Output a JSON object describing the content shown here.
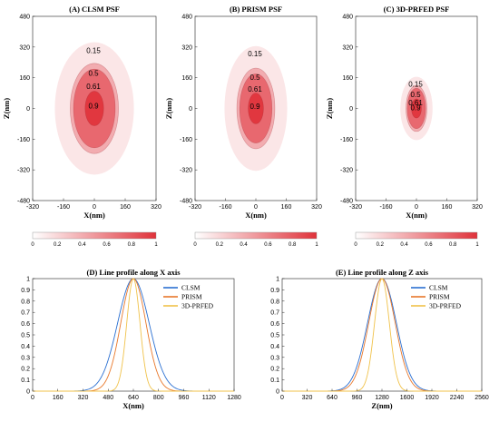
{
  "colors": {
    "psf_base": "#e0323a",
    "psf_light": "#f6d0d2",
    "clsm": "#2a6fd1",
    "prism": "#e8772a",
    "prfed": "#f0c24a"
  },
  "chart_data": [
    {
      "type": "heatmap",
      "title": "(A) CLSM PSF",
      "xlabel": "X(nm)",
      "ylabel": "Z(nm)",
      "xlim": [
        -320,
        320
      ],
      "ylim": [
        -480,
        480
      ],
      "xticks": [
        "-320",
        "-160",
        "0",
        "160",
        "320"
      ],
      "yticks": [
        "480",
        "320",
        "160",
        "0",
        "-160",
        "-320",
        "-480"
      ],
      "contour_levels": [
        "0.15",
        "0.5",
        "0.61",
        "0.9"
      ],
      "colorbar_ticks": [
        "0",
        "0.2",
        "0.4",
        "0.6",
        "0.8",
        "1"
      ],
      "psf_semi_axes_x": [
        205,
        125,
        108,
        48
      ],
      "psf_semi_axes_z": [
        345,
        235,
        205,
        90
      ]
    },
    {
      "type": "heatmap",
      "title": "(B) PRISM PSF",
      "xlabel": "X(nm)",
      "ylabel": "Z(nm)",
      "xlim": [
        -320,
        320
      ],
      "ylim": [
        -480,
        480
      ],
      "xticks": [
        "-320",
        "-160",
        "0",
        "160",
        "320"
      ],
      "yticks": [
        "480",
        "320",
        "160",
        "0",
        "-160",
        "-320",
        "-480"
      ],
      "contour_levels": [
        "0.15",
        "0.5",
        "0.61",
        "0.9"
      ],
      "colorbar_ticks": [
        "0",
        "0.2",
        "0.4",
        "0.6",
        "0.8",
        "1"
      ],
      "psf_semi_axes_x": [
        165,
        100,
        85,
        40
      ],
      "psf_semi_axes_z": [
        325,
        210,
        180,
        80
      ]
    },
    {
      "type": "heatmap",
      "title": "(C) 3D-PRFED PSF",
      "xlabel": "X(nm)",
      "ylabel": "Z(nm)",
      "xlim": [
        -320,
        320
      ],
      "ylim": [
        -480,
        480
      ],
      "xticks": [
        "-320",
        "-160",
        "0",
        "160",
        "320"
      ],
      "yticks": [
        "480",
        "320",
        "160",
        "0",
        "-160",
        "-320",
        "-480"
      ],
      "contour_levels": [
        "0.15",
        "0.5",
        "0.61",
        "0.9"
      ],
      "colorbar_ticks": [
        "0",
        "0.2",
        "0.4",
        "0.6",
        "0.8",
        "1"
      ],
      "psf_semi_axes_x": [
        85,
        55,
        48,
        26
      ],
      "psf_semi_axes_z": [
        165,
        120,
        105,
        50
      ]
    },
    {
      "type": "line",
      "title": "(D) Line profile along X axis",
      "xlabel": "X(nm)",
      "ylabel": "",
      "xlim": [
        0,
        1280
      ],
      "ylim": [
        0,
        1
      ],
      "xticks": [
        "0",
        "160",
        "320",
        "480",
        "640",
        "800",
        "960",
        "1120",
        "1280"
      ],
      "yticks": [
        "0",
        "0.1",
        "0.2",
        "0.3",
        "0.4",
        "0.5",
        "0.6",
        "0.7",
        "0.8",
        "0.9",
        "1"
      ],
      "legend_position": "top-right",
      "series": [
        {
          "name": "CLSM",
          "center": 640,
          "sigma": 100,
          "color": "#2a6fd1"
        },
        {
          "name": "PRISM",
          "center": 640,
          "sigma": 80,
          "color": "#e8772a"
        },
        {
          "name": "3D-PRFED",
          "center": 640,
          "sigma": 42,
          "color": "#f0c24a"
        }
      ]
    },
    {
      "type": "line",
      "title": "(E) Line profile along Z axis",
      "xlabel": "Z(nm)",
      "ylabel": "",
      "xlim": [
        0,
        2560
      ],
      "ylim": [
        0,
        1
      ],
      "xticks": [
        "0",
        "320",
        "640",
        "960",
        "1280",
        "1600",
        "1920",
        "2240",
        "2560"
      ],
      "yticks": [
        "0",
        "0.1",
        "0.2",
        "0.3",
        "0.4",
        "0.5",
        "0.6",
        "0.7",
        "0.8",
        "0.9",
        "1"
      ],
      "legend_position": "top-right",
      "series": [
        {
          "name": "CLSM",
          "center": 1280,
          "sigma": 185,
          "color": "#2a6fd1"
        },
        {
          "name": "PRISM",
          "center": 1280,
          "sigma": 170,
          "color": "#e8772a"
        },
        {
          "name": "3D-PRFED",
          "center": 1280,
          "sigma": 95,
          "color": "#f0c24a"
        }
      ]
    }
  ]
}
